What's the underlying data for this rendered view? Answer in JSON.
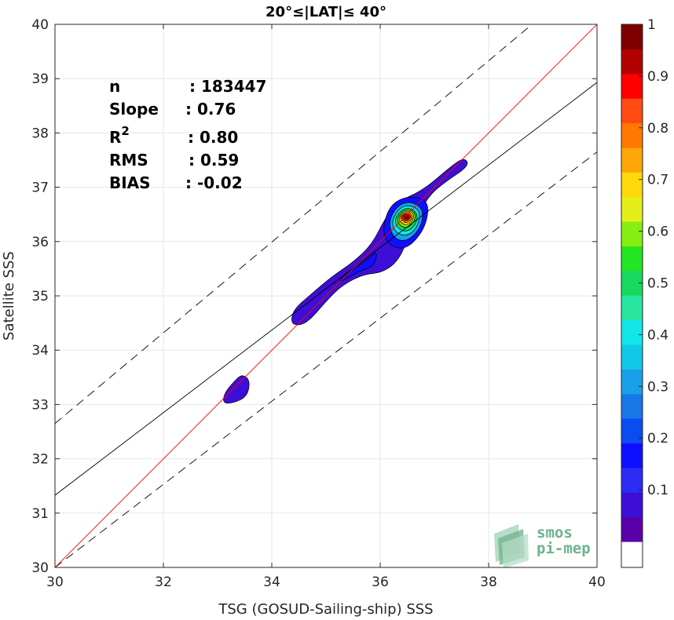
{
  "chart_data": {
    "type": "scatter",
    "title": "20°≤|LAT|≤ 40°",
    "xlabel": "TSG (GOSUD-Sailing-ship) SSS",
    "ylabel": "Satellite SSS",
    "xlim": [
      30,
      40
    ],
    "ylim": [
      30,
      40
    ],
    "xticks": [
      "30",
      "32",
      "34",
      "36",
      "38",
      "40"
    ],
    "yticks": [
      "30",
      "31",
      "32",
      "33",
      "34",
      "35",
      "36",
      "37",
      "38",
      "39",
      "40"
    ],
    "grid": true,
    "reference_lines": {
      "one_to_one": {
        "x": [
          30,
          40
        ],
        "y": [
          30,
          40
        ],
        "color": "#ff0000"
      },
      "regression_fit": {
        "x": [
          30,
          40
        ],
        "y": [
          31.33,
          38.93
        ],
        "color": "#000000"
      },
      "upper_bound": {
        "x": [
          30,
          40
        ],
        "y": [
          32.65,
          41.0
        ]
      },
      "lower_bound": {
        "x": [
          30,
          40
        ],
        "y": [
          30.0,
          37.65
        ]
      }
    },
    "stats": [
      {
        "label": "n",
        "sep": ": ",
        "value": "183447"
      },
      {
        "label": "Slope",
        "sep": ": ",
        "value": "0.76"
      },
      {
        "label": "R",
        "sup": "2",
        "sep": ": ",
        "value": "0.80"
      },
      {
        "label": "RMS",
        "sep": ": ",
        "value": "0.59"
      },
      {
        "label": "BIAS",
        "sep": ": ",
        "value": "-0.02"
      }
    ],
    "density_contours": [
      {
        "level": 0.05,
        "points": [
          [
            33.1,
            33.02
          ],
          [
            33.12,
            33.2
          ],
          [
            33.3,
            33.42
          ],
          [
            33.45,
            33.56
          ],
          [
            33.6,
            33.45
          ],
          [
            33.55,
            33.15
          ],
          [
            33.3,
            33.03
          ]
        ]
      },
      {
        "level": 0.05,
        "points": [
          [
            34.35,
            34.5
          ],
          [
            34.4,
            34.75
          ],
          [
            34.75,
            35.05
          ],
          [
            35.1,
            35.35
          ],
          [
            35.5,
            35.62
          ],
          [
            35.85,
            35.95
          ],
          [
            36.1,
            36.45
          ],
          [
            36.35,
            36.75
          ],
          [
            36.8,
            36.95
          ],
          [
            37.3,
            37.38
          ],
          [
            37.55,
            37.55
          ],
          [
            37.65,
            37.4
          ],
          [
            37.2,
            37.1
          ],
          [
            36.9,
            36.85
          ],
          [
            36.65,
            36.4
          ],
          [
            36.5,
            36.0
          ],
          [
            36.3,
            35.6
          ],
          [
            36.0,
            35.42
          ],
          [
            35.7,
            35.4
          ],
          [
            35.3,
            35.2
          ],
          [
            35.0,
            34.9
          ],
          [
            34.7,
            34.55
          ],
          [
            34.5,
            34.45
          ]
        ]
      },
      {
        "level": 0.15,
        "points": [
          [
            35.2,
            35.25
          ],
          [
            35.5,
            35.5
          ],
          [
            35.75,
            35.65
          ],
          [
            35.95,
            35.85
          ],
          [
            35.9,
            35.55
          ],
          [
            35.6,
            35.45
          ],
          [
            35.35,
            35.3
          ]
        ]
      },
      {
        "level": 0.15,
        "points": [
          [
            36.05,
            36.3
          ],
          [
            36.2,
            36.7
          ],
          [
            36.55,
            36.85
          ],
          [
            36.9,
            36.75
          ],
          [
            36.85,
            36.3
          ],
          [
            36.6,
            35.95
          ],
          [
            36.35,
            35.85
          ],
          [
            36.1,
            36.0
          ]
        ]
      },
      {
        "level": 0.3,
        "points": [
          [
            36.15,
            36.35
          ],
          [
            36.3,
            36.65
          ],
          [
            36.55,
            36.75
          ],
          [
            36.8,
            36.6
          ],
          [
            36.75,
            36.25
          ],
          [
            36.5,
            36.0
          ],
          [
            36.25,
            36.05
          ]
        ]
      },
      {
        "level": 0.4,
        "points": [
          [
            36.2,
            36.35
          ],
          [
            36.35,
            36.62
          ],
          [
            36.55,
            36.68
          ],
          [
            36.75,
            36.55
          ],
          [
            36.68,
            36.25
          ],
          [
            36.5,
            36.1
          ],
          [
            36.3,
            36.15
          ]
        ]
      },
      {
        "level": 0.5,
        "points": [
          [
            36.25,
            36.38
          ],
          [
            36.38,
            36.58
          ],
          [
            36.55,
            36.63
          ],
          [
            36.7,
            36.5
          ],
          [
            36.65,
            36.3
          ],
          [
            36.5,
            36.18
          ],
          [
            36.35,
            36.22
          ]
        ]
      },
      {
        "level": 0.6,
        "points": [
          [
            36.3,
            36.4
          ],
          [
            36.4,
            36.56
          ],
          [
            36.55,
            36.6
          ],
          [
            36.66,
            36.5
          ],
          [
            36.62,
            36.35
          ],
          [
            36.5,
            36.25
          ],
          [
            36.38,
            36.28
          ]
        ]
      },
      {
        "level": 0.7,
        "points": [
          [
            36.33,
            36.42
          ],
          [
            36.42,
            36.54
          ],
          [
            36.54,
            36.57
          ],
          [
            36.63,
            36.49
          ],
          [
            36.59,
            36.37
          ],
          [
            36.49,
            36.3
          ],
          [
            36.4,
            36.33
          ]
        ]
      },
      {
        "level": 0.8,
        "points": [
          [
            36.36,
            36.44
          ],
          [
            36.44,
            36.52
          ],
          [
            36.53,
            36.54
          ],
          [
            36.6,
            36.47
          ],
          [
            36.57,
            36.39
          ],
          [
            36.48,
            36.34
          ],
          [
            36.42,
            36.37
          ]
        ]
      },
      {
        "level": 0.9,
        "points": [
          [
            36.39,
            36.45
          ],
          [
            36.45,
            36.5
          ],
          [
            36.52,
            36.51
          ],
          [
            36.57,
            36.46
          ],
          [
            36.54,
            36.41
          ],
          [
            36.47,
            36.38
          ],
          [
            36.43,
            36.4
          ]
        ]
      },
      {
        "level": 1.0,
        "points": [
          [
            36.43,
            36.45
          ],
          [
            36.47,
            36.48
          ],
          [
            36.51,
            36.48
          ],
          [
            36.53,
            36.45
          ],
          [
            36.5,
            36.42
          ],
          [
            36.46,
            36.42
          ]
        ]
      }
    ],
    "colorbar": {
      "ticks": [
        "0.1",
        "0.2",
        "0.3",
        "0.4",
        "0.5",
        "0.6",
        "0.7",
        "0.8",
        "0.9",
        "1"
      ],
      "levels": [
        0,
        0.05,
        0.1,
        0.15,
        0.2,
        0.25,
        0.3,
        0.35,
        0.4,
        0.45,
        0.5,
        0.55,
        0.6,
        0.65,
        0.7,
        0.75,
        0.8,
        0.85,
        0.9,
        0.95,
        1.0
      ],
      "colors": [
        "#ffffff",
        "#5a00a8",
        "#3d0fd6",
        "#2c2cf5",
        "#0f0fff",
        "#0a4cf0",
        "#1877e6",
        "#1aa0e8",
        "#12c8e8",
        "#13e6e6",
        "#28e6a0",
        "#18d860",
        "#22e622",
        "#88ee12",
        "#e6ee18",
        "#ffd90a",
        "#ffa60a",
        "#ff7800",
        "#ff4a12",
        "#ff0000",
        "#b20000",
        "#7f0000"
      ]
    }
  },
  "logo": {
    "line1": "smos",
    "line2": "pi-mep"
  }
}
